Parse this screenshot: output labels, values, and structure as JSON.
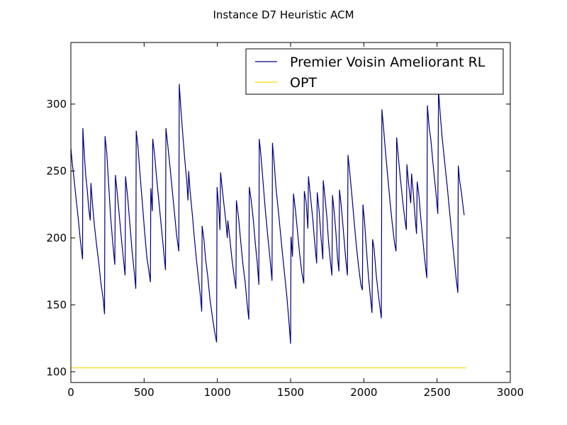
{
  "chart_data": {
    "type": "line",
    "title": "Instance D7 Heuristic ACM",
    "xlabel": "",
    "ylabel": "",
    "xlim": [
      0,
      3000
    ],
    "ylim": [
      92,
      346
    ],
    "xticks": [
      0,
      500,
      1000,
      1500,
      2000,
      2500,
      3000
    ],
    "yticks": [
      100,
      150,
      200,
      250,
      300
    ],
    "grid": false,
    "legend_position": "top-right",
    "series": [
      {
        "name": "Premier Voisin Ameliorant RL",
        "color": "#000080",
        "points": [
          [
            0,
            267
          ],
          [
            10,
            255
          ],
          [
            20,
            246
          ],
          [
            35,
            230
          ],
          [
            50,
            215
          ],
          [
            65,
            198
          ],
          [
            80,
            184
          ],
          [
            82,
            282
          ],
          [
            92,
            262
          ],
          [
            102,
            246
          ],
          [
            112,
            236
          ],
          [
            122,
            222
          ],
          [
            132,
            213
          ],
          [
            137,
            241
          ],
          [
            147,
            226
          ],
          [
            160,
            210
          ],
          [
            175,
            195
          ],
          [
            190,
            182
          ],
          [
            205,
            166
          ],
          [
            220,
            155
          ],
          [
            230,
            143
          ],
          [
            233,
            276
          ],
          [
            245,
            264
          ],
          [
            258,
            240
          ],
          [
            272,
            215
          ],
          [
            287,
            195
          ],
          [
            300,
            180
          ],
          [
            304,
            247
          ],
          [
            318,
            232
          ],
          [
            333,
            214
          ],
          [
            348,
            196
          ],
          [
            360,
            183
          ],
          [
            370,
            172
          ],
          [
            373,
            246
          ],
          [
            388,
            230
          ],
          [
            403,
            210
          ],
          [
            418,
            190
          ],
          [
            433,
            174
          ],
          [
            443,
            162
          ],
          [
            446,
            280
          ],
          [
            458,
            268
          ],
          [
            472,
            248
          ],
          [
            488,
            226
          ],
          [
            503,
            205
          ],
          [
            518,
            186
          ],
          [
            533,
            175
          ],
          [
            543,
            167
          ],
          [
            546,
            237
          ],
          [
            556,
            220
          ],
          [
            559,
            274
          ],
          [
            572,
            262
          ],
          [
            586,
            244
          ],
          [
            602,
            226
          ],
          [
            617,
            209
          ],
          [
            632,
            192
          ],
          [
            646,
            176
          ],
          [
            649,
            282
          ],
          [
            661,
            270
          ],
          [
            676,
            254
          ],
          [
            692,
            236
          ],
          [
            708,
            218
          ],
          [
            722,
            202
          ],
          [
            737,
            190
          ],
          [
            740,
            315
          ],
          [
            752,
            295
          ],
          [
            765,
            276
          ],
          [
            778,
            258
          ],
          [
            790,
            244
          ],
          [
            800,
            228
          ],
          [
            804,
            250
          ],
          [
            814,
            235
          ],
          [
            829,
            218
          ],
          [
            843,
            200
          ],
          [
            858,
            183
          ],
          [
            873,
            168
          ],
          [
            885,
            156
          ],
          [
            893,
            145
          ],
          [
            896,
            209
          ],
          [
            908,
            199
          ],
          [
            920,
            184
          ],
          [
            935,
            171
          ],
          [
            950,
            154
          ],
          [
            965,
            142
          ],
          [
            980,
            131
          ],
          [
            995,
            122
          ],
          [
            998,
            238
          ],
          [
            1008,
            225
          ],
          [
            1018,
            206
          ],
          [
            1022,
            249
          ],
          [
            1034,
            236
          ],
          [
            1046,
            224
          ],
          [
            1058,
            212
          ],
          [
            1068,
            200
          ],
          [
            1072,
            213
          ],
          [
            1084,
            201
          ],
          [
            1099,
            185
          ],
          [
            1114,
            172
          ],
          [
            1127,
            162
          ],
          [
            1130,
            228
          ],
          [
            1145,
            215
          ],
          [
            1160,
            197
          ],
          [
            1175,
            180
          ],
          [
            1190,
            167
          ],
          [
            1202,
            152
          ],
          [
            1215,
            139
          ],
          [
            1218,
            238
          ],
          [
            1230,
            229
          ],
          [
            1245,
            214
          ],
          [
            1260,
            195
          ],
          [
            1272,
            182
          ],
          [
            1283,
            165
          ],
          [
            1286,
            274
          ],
          [
            1298,
            261
          ],
          [
            1312,
            242
          ],
          [
            1327,
            222
          ],
          [
            1342,
            204
          ],
          [
            1358,
            186
          ],
          [
            1373,
            168
          ],
          [
            1376,
            271
          ],
          [
            1388,
            256
          ],
          [
            1400,
            238
          ],
          [
            1415,
            222
          ],
          [
            1430,
            205
          ],
          [
            1445,
            188
          ],
          [
            1460,
            172
          ],
          [
            1475,
            156
          ],
          [
            1490,
            136
          ],
          [
            1500,
            121
          ],
          [
            1503,
            201
          ],
          [
            1513,
            186
          ],
          [
            1520,
            233
          ],
          [
            1534,
            220
          ],
          [
            1548,
            204
          ],
          [
            1562,
            188
          ],
          [
            1577,
            174
          ],
          [
            1590,
            166
          ],
          [
            1594,
            235
          ],
          [
            1606,
            227
          ],
          [
            1618,
            207
          ],
          [
            1622,
            246
          ],
          [
            1635,
            232
          ],
          [
            1650,
            216
          ],
          [
            1665,
            196
          ],
          [
            1678,
            181
          ],
          [
            1682,
            234
          ],
          [
            1695,
            220
          ],
          [
            1708,
            200
          ],
          [
            1720,
            184
          ],
          [
            1723,
            243
          ],
          [
            1735,
            230
          ],
          [
            1748,
            215
          ],
          [
            1760,
            196
          ],
          [
            1772,
            182
          ],
          [
            1782,
            172
          ],
          [
            1786,
            232
          ],
          [
            1798,
            219
          ],
          [
            1810,
            203
          ],
          [
            1820,
            186
          ],
          [
            1830,
            175
          ],
          [
            1834,
            236
          ],
          [
            1846,
            224
          ],
          [
            1860,
            206
          ],
          [
            1875,
            186
          ],
          [
            1888,
            172
          ],
          [
            1892,
            262
          ],
          [
            1905,
            248
          ],
          [
            1920,
            230
          ],
          [
            1935,
            211
          ],
          [
            1950,
            193
          ],
          [
            1965,
            178
          ],
          [
            1980,
            165
          ],
          [
            1990,
            161
          ],
          [
            1994,
            225
          ],
          [
            2005,
            212
          ],
          [
            2018,
            191
          ],
          [
            2032,
            171
          ],
          [
            2046,
            155
          ],
          [
            2056,
            144
          ],
          [
            2060,
            199
          ],
          [
            2070,
            192
          ],
          [
            2085,
            172
          ],
          [
            2100,
            157
          ],
          [
            2115,
            144
          ],
          [
            2120,
            140
          ],
          [
            2123,
            296
          ],
          [
            2135,
            282
          ],
          [
            2150,
            262
          ],
          [
            2165,
            244
          ],
          [
            2180,
            226
          ],
          [
            2195,
            210
          ],
          [
            2210,
            196
          ],
          [
            2220,
            190
          ],
          [
            2224,
            275
          ],
          [
            2236,
            260
          ],
          [
            2250,
            244
          ],
          [
            2265,
            228
          ],
          [
            2280,
            214
          ],
          [
            2290,
            206
          ],
          [
            2294,
            255
          ],
          [
            2306,
            240
          ],
          [
            2320,
            226
          ],
          [
            2326,
            248
          ],
          [
            2338,
            233
          ],
          [
            2350,
            215
          ],
          [
            2360,
            203
          ],
          [
            2364,
            242
          ],
          [
            2375,
            233
          ],
          [
            2388,
            216
          ],
          [
            2400,
            202
          ],
          [
            2412,
            188
          ],
          [
            2420,
            180
          ],
          [
            2430,
            170
          ],
          [
            2434,
            299
          ],
          [
            2446,
            283
          ],
          [
            2458,
            273
          ],
          [
            2470,
            258
          ],
          [
            2482,
            245
          ],
          [
            2494,
            232
          ],
          [
            2505,
            218
          ],
          [
            2510,
            310
          ],
          [
            2522,
            292
          ],
          [
            2534,
            276
          ],
          [
            2546,
            263
          ],
          [
            2558,
            250
          ],
          [
            2570,
            238
          ],
          [
            2582,
            224
          ],
          [
            2594,
            210
          ],
          [
            2606,
            196
          ],
          [
            2618,
            183
          ],
          [
            2630,
            170
          ],
          [
            2642,
            159
          ],
          [
            2645,
            254
          ],
          [
            2655,
            242
          ],
          [
            2665,
            235
          ],
          [
            2675,
            226
          ],
          [
            2685,
            217
          ]
        ]
      },
      {
        "name": "OPT",
        "color": "#FFD700",
        "points": [
          [
            0,
            103
          ],
          [
            2700,
            103
          ]
        ]
      }
    ]
  }
}
